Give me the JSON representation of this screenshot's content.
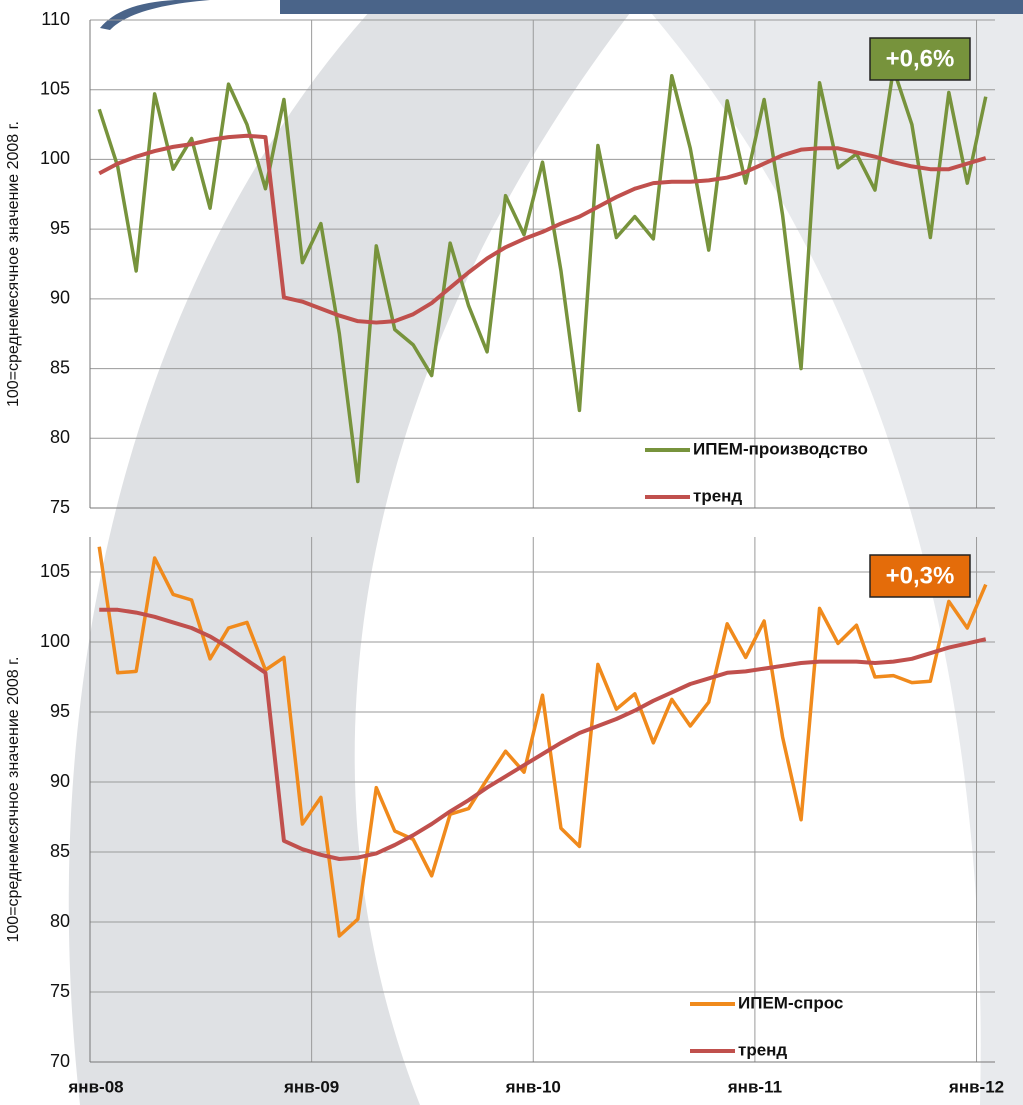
{
  "chart_data": [
    {
      "type": "line",
      "ylabel": "100=среднемесячное значение 2008 г.",
      "annotation": {
        "text": "+0,6%",
        "color": "#77933c"
      },
      "ylim": [
        75,
        110
      ],
      "yticks": [
        75,
        80,
        85,
        90,
        95,
        100,
        105,
        110
      ],
      "grid": true,
      "legend": "lower right",
      "series": [
        {
          "name": "ИПЕМ-производство",
          "color": "#77933c",
          "values": [
            103.6,
            99.5,
            92,
            104.7,
            99.3,
            101.5,
            96.5,
            105.4,
            102.5,
            97.9,
            104.3,
            92.6,
            95.4,
            87.5,
            76.9,
            93.8,
            87.8,
            86.7,
            84.5,
            94,
            89.5,
            86.2,
            97.4,
            94.6,
            99.8,
            92,
            82,
            101,
            94.4,
            95.9,
            94.3,
            106,
            100.8,
            93.5,
            104.2,
            98.3,
            104.3,
            96,
            85,
            105.5,
            99.4,
            100.4,
            97.8,
            106.5,
            102.5,
            94.4,
            104.8,
            98.3,
            104.5
          ]
        },
        {
          "name": "тренд",
          "color": "#c0504d",
          "values": [
            99,
            99.7,
            100.2,
            100.6,
            100.9,
            101.1,
            101.4,
            101.6,
            101.7,
            101.6,
            90.1,
            89.8,
            89.3,
            88.8,
            88.4,
            88.3,
            88.4,
            88.9,
            89.7,
            90.8,
            91.9,
            92.9,
            93.7,
            94.3,
            94.8,
            95.4,
            95.9,
            96.6,
            97.3,
            97.9,
            98.3,
            98.4,
            98.4,
            98.5,
            98.7,
            99.1,
            99.7,
            100.3,
            100.7,
            100.8,
            100.8,
            100.5,
            100.2,
            99.8,
            99.5,
            99.3,
            99.3,
            99.7,
            100.1
          ]
        }
      ]
    },
    {
      "type": "line",
      "ylabel": "100=среднемесячное значение 2008 г.",
      "annotation": {
        "text": "+0,3%",
        "color": "#e46c0a"
      },
      "categories": [
        "янв-08",
        null,
        null,
        null,
        null,
        null,
        null,
        null,
        null,
        null,
        null,
        null,
        "янв-09",
        null,
        null,
        null,
        null,
        null,
        null,
        null,
        null,
        null,
        null,
        null,
        "янв-10",
        null,
        null,
        null,
        null,
        null,
        null,
        null,
        null,
        null,
        null,
        null,
        "янв-11",
        null,
        null,
        null,
        null,
        null,
        null,
        null,
        null,
        null,
        null,
        null,
        "янв-12"
      ],
      "ylim": [
        70,
        107.5
      ],
      "yticks": [
        70,
        75,
        80,
        85,
        90,
        95,
        100,
        105
      ],
      "grid": true,
      "legend": "lower right",
      "series": [
        {
          "name": "ИПЕМ-спрос",
          "color": "#f08a1c",
          "values": [
            106.8,
            97.8,
            97.9,
            106,
            103.4,
            103,
            98.8,
            101,
            101.4,
            98,
            98.9,
            87,
            88.9,
            79,
            80.2,
            89.6,
            86.5,
            85.9,
            83.3,
            87.7,
            88.1,
            90.2,
            92.2,
            90.7,
            96.2,
            86.7,
            85.4,
            98.4,
            95.2,
            96.3,
            92.8,
            95.9,
            94,
            95.7,
            101.3,
            98.9,
            101.5,
            93.2,
            87.3,
            102.4,
            99.9,
            101.2,
            97.5,
            97.6,
            97.1,
            97.2,
            102.9,
            101,
            104.1
          ]
        },
        {
          "name": "тренд",
          "color": "#c0504d",
          "values": [
            102.3,
            102.3,
            102.1,
            101.8,
            101.4,
            101,
            100.4,
            99.6,
            98.7,
            97.8,
            85.8,
            85.2,
            84.8,
            84.5,
            84.6,
            84.9,
            85.5,
            86.2,
            87,
            87.9,
            88.7,
            89.6,
            90.4,
            91.2,
            92,
            92.8,
            93.5,
            94,
            94.5,
            95.1,
            95.8,
            96.4,
            97,
            97.4,
            97.8,
            97.9,
            98.1,
            98.3,
            98.5,
            98.6,
            98.6,
            98.6,
            98.5,
            98.6,
            98.8,
            99.2,
            99.6,
            99.9,
            100.2
          ]
        }
      ]
    }
  ]
}
